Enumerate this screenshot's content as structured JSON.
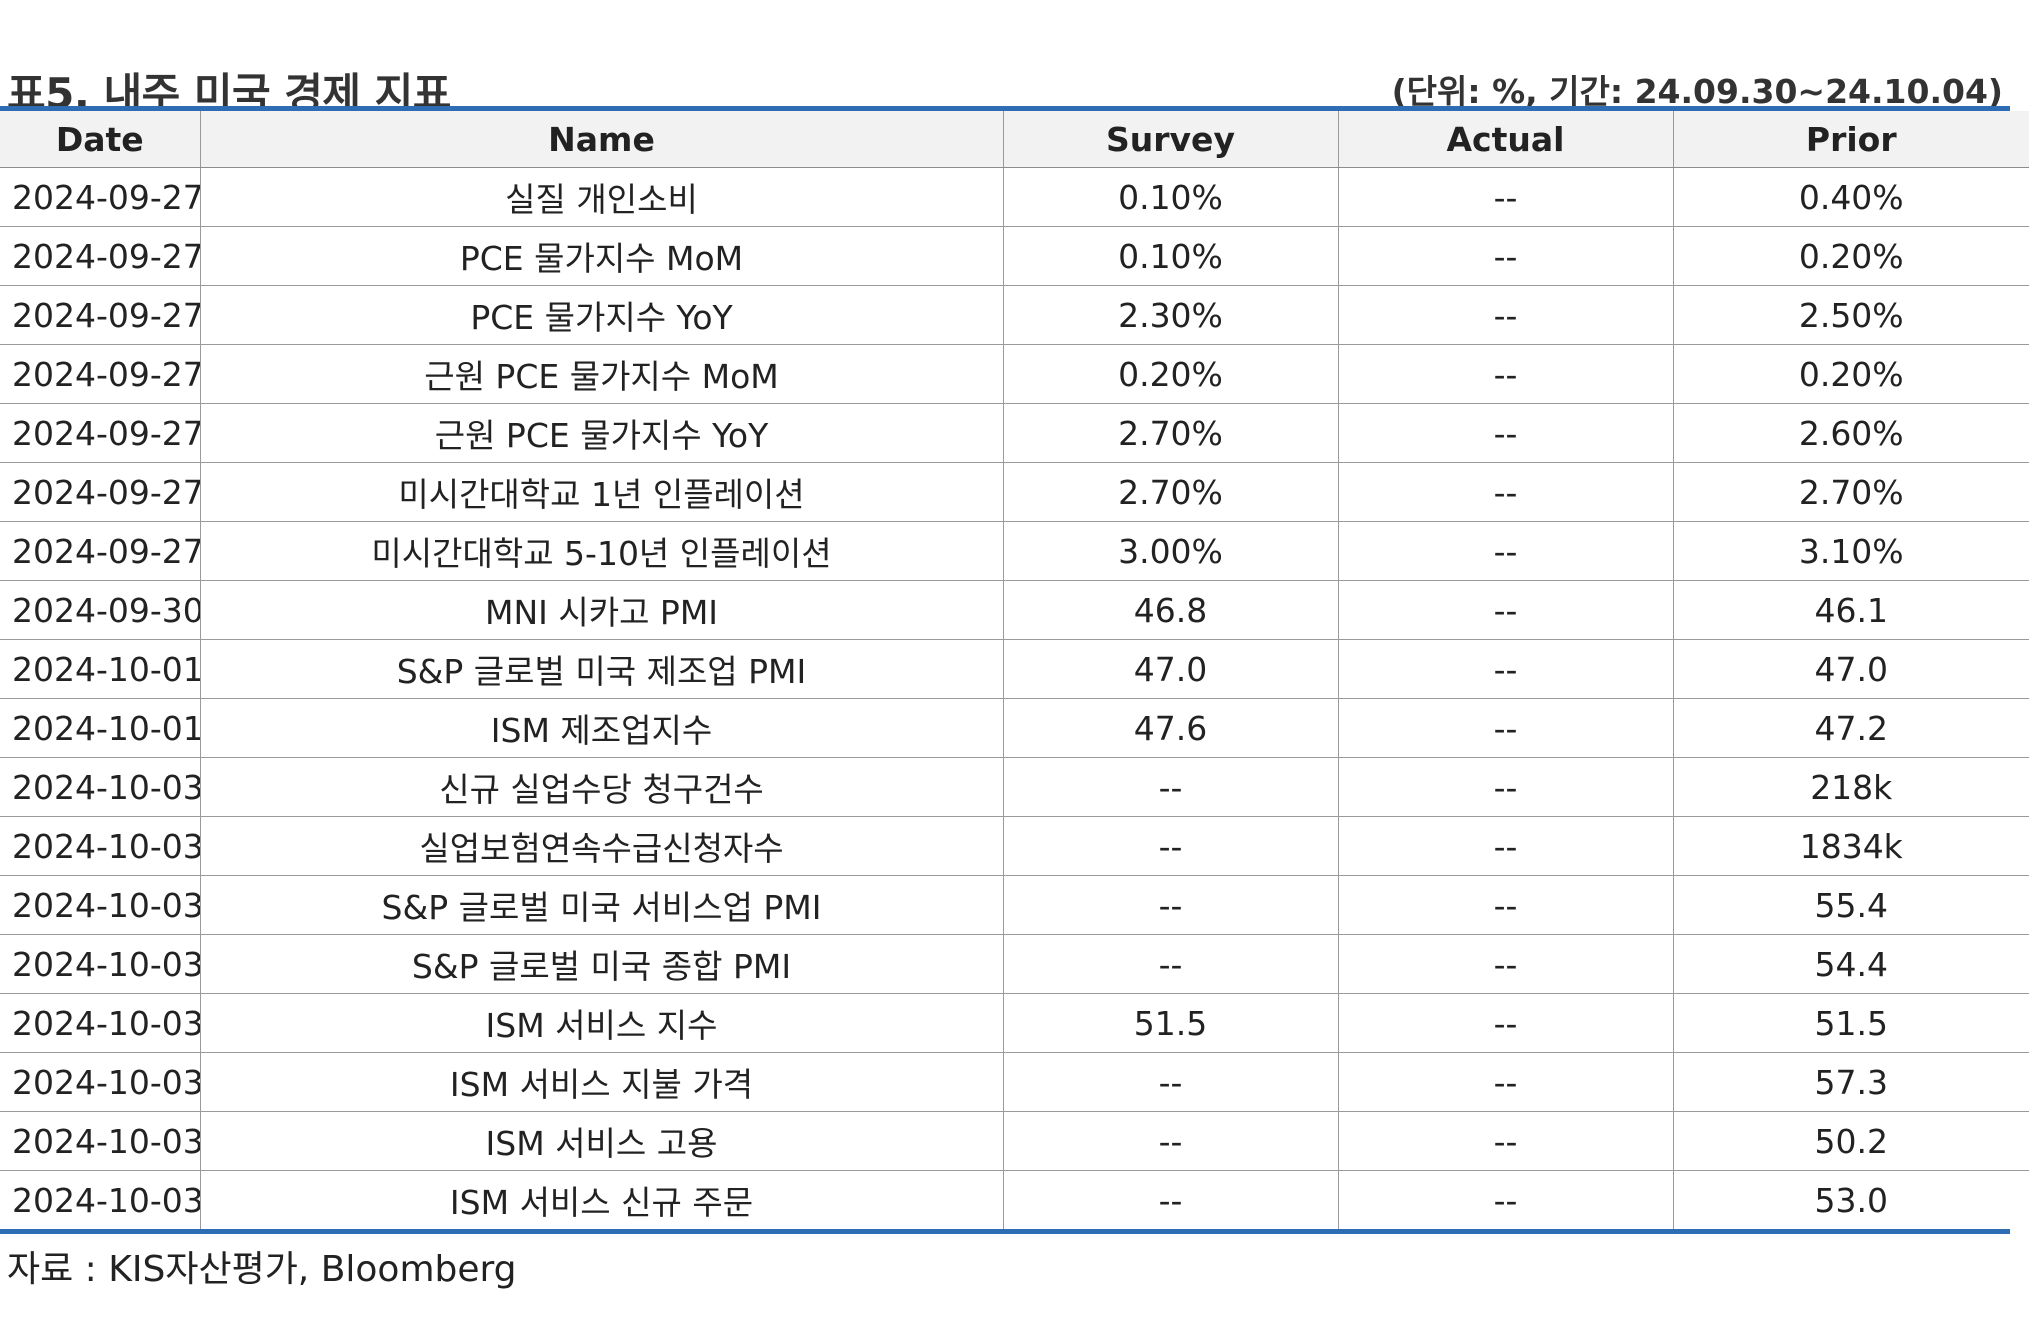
{
  "header": {
    "title": "표5. 내주 미국 경제 지표",
    "unit_note": "(단위: %, 기간: 24.09.30~24.10.04)"
  },
  "table": {
    "columns": [
      "Date",
      "Name",
      "Survey",
      "Actual",
      "Prior"
    ],
    "rows": [
      {
        "date": "2024-09-27",
        "name": "실질 개인소비",
        "survey": "0.10%",
        "actual": "--",
        "prior": "0.40%"
      },
      {
        "date": "2024-09-27",
        "name": "PCE 물가지수 MoM",
        "survey": "0.10%",
        "actual": "--",
        "prior": "0.20%"
      },
      {
        "date": "2024-09-27",
        "name": "PCE 물가지수 YoY",
        "survey": "2.30%",
        "actual": "--",
        "prior": "2.50%"
      },
      {
        "date": "2024-09-27",
        "name": "근원 PCE 물가지수 MoM",
        "survey": "0.20%",
        "actual": "--",
        "prior": "0.20%"
      },
      {
        "date": "2024-09-27",
        "name": "근원 PCE 물가지수 YoY",
        "survey": "2.70%",
        "actual": "--",
        "prior": "2.60%"
      },
      {
        "date": "2024-09-27",
        "name": "미시간대학교 1년 인플레이션",
        "survey": "2.70%",
        "actual": "--",
        "prior": "2.70%"
      },
      {
        "date": "2024-09-27",
        "name": "미시간대학교 5-10년 인플레이션",
        "survey": "3.00%",
        "actual": "--",
        "prior": "3.10%"
      },
      {
        "date": "2024-09-30",
        "name": "MNI 시카고 PMI",
        "survey": "46.8",
        "actual": "--",
        "prior": "46.1"
      },
      {
        "date": "2024-10-01",
        "name": "S&P 글로벌 미국 제조업 PMI",
        "survey": "47.0",
        "actual": "--",
        "prior": "47.0"
      },
      {
        "date": "2024-10-01",
        "name": "ISM 제조업지수",
        "survey": "47.6",
        "actual": "--",
        "prior": "47.2"
      },
      {
        "date": "2024-10-03",
        "name": "신규 실업수당 청구건수",
        "survey": "--",
        "actual": "--",
        "prior": "218k"
      },
      {
        "date": "2024-10-03",
        "name": "실업보험연속수급신청자수",
        "survey": "--",
        "actual": "--",
        "prior": "1834k"
      },
      {
        "date": "2024-10-03",
        "name": "S&P 글로벌 미국 서비스업 PMI",
        "survey": "--",
        "actual": "--",
        "prior": "55.4"
      },
      {
        "date": "2024-10-03",
        "name": "S&P 글로벌 미국 종합 PMI",
        "survey": "--",
        "actual": "--",
        "prior": "54.4"
      },
      {
        "date": "2024-10-03",
        "name": "ISM 서비스 지수",
        "survey": "51.5",
        "actual": "--",
        "prior": "51.5"
      },
      {
        "date": "2024-10-03",
        "name": "ISM 서비스 지불 가격",
        "survey": "--",
        "actual": "--",
        "prior": "57.3"
      },
      {
        "date": "2024-10-03",
        "name": "ISM 서비스 고용",
        "survey": "--",
        "actual": "--",
        "prior": "50.2"
      },
      {
        "date": "2024-10-03",
        "name": "ISM 서비스 신규 주문",
        "survey": "--",
        "actual": "--",
        "prior": "53.0"
      }
    ]
  },
  "footer": {
    "source": "자료 : KIS자산평가, Bloomberg"
  },
  "colors": {
    "rule": "#2e6db4",
    "header_bg": "#f2f2f2",
    "grid": "#9a9a9a"
  }
}
